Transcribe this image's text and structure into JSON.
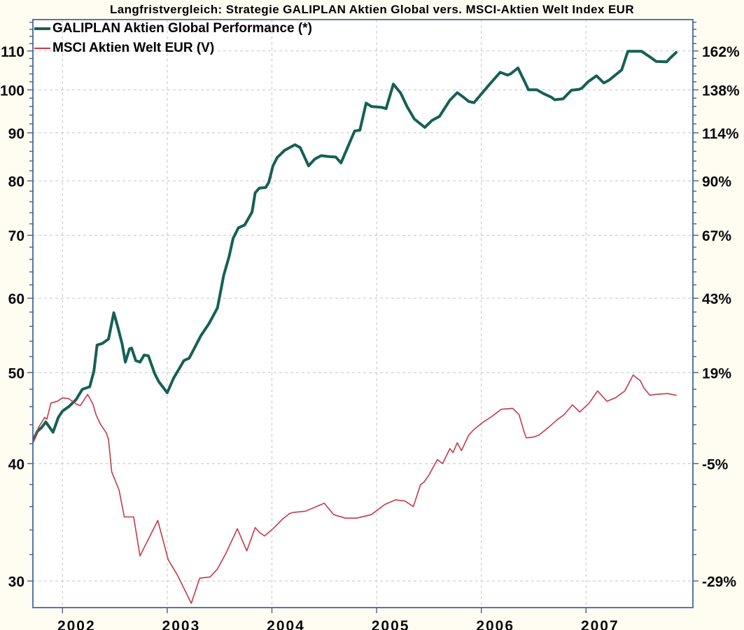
{
  "title": "Langfristvergleich: Strategie GALIPLAN Aktien Global vers. MSCI-Aktien Welt Index EUR",
  "colors": {
    "galiplan_line": "#166056",
    "msci_line": "#c43a4a",
    "frame": "#5578a8",
    "gridline": "#c6c6c6",
    "page_background": "#fffdf2",
    "plot_background": "#ffffff",
    "text": "#0a0a0a"
  },
  "chart_data": {
    "type": "line",
    "title": "Langfristvergleich: Strategie GALIPLAN Aktien Global vers. MSCI-Aktien Welt Index EUR",
    "legend_position": "top-left-inside",
    "grid": "dashed, at every labeled tick",
    "x_axis": {
      "ticks": [
        2002,
        2003,
        2004,
        2005,
        2006,
        2007
      ],
      "range_years": [
        2001.71,
        2008.02
      ]
    },
    "y_axis_left": {
      "scale": "log",
      "ticks": [
        110,
        100,
        90,
        80,
        70,
        60,
        50,
        40,
        30
      ],
      "minor_ticks": [
        118,
        116,
        114,
        112,
        108,
        106,
        104,
        102,
        98,
        96,
        94,
        92,
        88,
        86,
        84,
        82,
        78,
        76,
        74,
        72,
        68,
        66,
        64,
        62,
        58,
        56,
        54,
        52,
        48,
        46,
        44,
        42,
        38,
        36,
        34,
        32,
        28
      ],
      "range": [
        28.1,
        118.8
      ]
    },
    "y_axis_right": {
      "tick_labels": [
        "162%",
        "138%",
        "114%",
        "90%",
        "67%",
        "43%",
        "19%",
        "-5%",
        "-29%"
      ],
      "aligned_with_left_ticks": true
    },
    "series": [
      {
        "name": "GALIPLAN Aktien Global Performance (*)",
        "color": "#166056",
        "stroke_width": 4,
        "points": [
          [
            2001.71,
            42.1
          ],
          [
            2001.76,
            43.3
          ],
          [
            2001.8,
            43.7
          ],
          [
            2001.84,
            44.3
          ],
          [
            2001.91,
            43.2
          ],
          [
            2001.96,
            44.8
          ],
          [
            2002.0,
            45.5
          ],
          [
            2002.06,
            46.0
          ],
          [
            2002.13,
            46.8
          ],
          [
            2002.19,
            48.0
          ],
          [
            2002.26,
            48.3
          ],
          [
            2002.3,
            50.2
          ],
          [
            2002.33,
            53.5
          ],
          [
            2002.38,
            53.7
          ],
          [
            2002.44,
            54.3
          ],
          [
            2002.49,
            57.9
          ],
          [
            2002.53,
            55.8
          ],
          [
            2002.57,
            53.6
          ],
          [
            2002.6,
            51.3
          ],
          [
            2002.64,
            53.0
          ],
          [
            2002.66,
            53.1
          ],
          [
            2002.7,
            51.5
          ],
          [
            2002.74,
            51.3
          ],
          [
            2002.78,
            52.2
          ],
          [
            2002.82,
            52.1
          ],
          [
            2002.88,
            49.9
          ],
          [
            2002.92,
            48.9
          ],
          [
            2003.0,
            47.6
          ],
          [
            2003.06,
            49.3
          ],
          [
            2003.16,
            51.5
          ],
          [
            2003.21,
            51.8
          ],
          [
            2003.32,
            54.7
          ],
          [
            2003.4,
            56.4
          ],
          [
            2003.48,
            58.6
          ],
          [
            2003.54,
            63.5
          ],
          [
            2003.59,
            66.4
          ],
          [
            2003.63,
            69.5
          ],
          [
            2003.68,
            71.3
          ],
          [
            2003.74,
            71.8
          ],
          [
            2003.81,
            74.1
          ],
          [
            2003.84,
            77.7
          ],
          [
            2003.88,
            78.6
          ],
          [
            2003.94,
            78.7
          ],
          [
            2003.97,
            79.7
          ],
          [
            2004.01,
            83.0
          ],
          [
            2004.05,
            84.7
          ],
          [
            2004.12,
            86.2
          ],
          [
            2004.22,
            87.4
          ],
          [
            2004.27,
            86.8
          ],
          [
            2004.35,
            83.0
          ],
          [
            2004.41,
            84.4
          ],
          [
            2004.47,
            85.1
          ],
          [
            2004.55,
            84.9
          ],
          [
            2004.61,
            84.8
          ],
          [
            2004.66,
            83.6
          ],
          [
            2004.76,
            88.8
          ],
          [
            2004.79,
            90.4
          ],
          [
            2004.84,
            90.6
          ],
          [
            2004.9,
            96.8
          ],
          [
            2004.95,
            96.0
          ],
          [
            2005.05,
            95.8
          ],
          [
            2005.09,
            95.5
          ],
          [
            2005.16,
            101.4
          ],
          [
            2005.23,
            99.2
          ],
          [
            2005.29,
            96.0
          ],
          [
            2005.36,
            93.1
          ],
          [
            2005.46,
            91.2
          ],
          [
            2005.53,
            92.8
          ],
          [
            2005.6,
            93.7
          ],
          [
            2005.64,
            95.2
          ],
          [
            2005.7,
            97.5
          ],
          [
            2005.77,
            99.3
          ],
          [
            2005.83,
            98.2
          ],
          [
            2005.88,
            97.2
          ],
          [
            2005.93,
            96.9
          ],
          [
            2006.08,
            101.4
          ],
          [
            2006.18,
            104.4
          ],
          [
            2006.25,
            103.7
          ],
          [
            2006.28,
            104.0
          ],
          [
            2006.35,
            105.5
          ],
          [
            2006.42,
            101.7
          ],
          [
            2006.45,
            100.0
          ],
          [
            2006.53,
            100.0
          ],
          [
            2006.6,
            99.0
          ],
          [
            2006.67,
            98.2
          ],
          [
            2006.7,
            97.6
          ],
          [
            2006.78,
            97.8
          ],
          [
            2006.86,
            99.9
          ],
          [
            2006.93,
            100.1
          ],
          [
            2006.96,
            100.4
          ],
          [
            2007.02,
            102.0
          ],
          [
            2007.1,
            103.5
          ],
          [
            2007.17,
            101.7
          ],
          [
            2007.22,
            102.4
          ],
          [
            2007.28,
            103.7
          ],
          [
            2007.34,
            105.0
          ],
          [
            2007.4,
            109.9
          ],
          [
            2007.53,
            109.9
          ],
          [
            2007.6,
            108.6
          ],
          [
            2007.67,
            107.2
          ],
          [
            2007.77,
            107.1
          ],
          [
            2007.8,
            108.0
          ],
          [
            2007.86,
            109.6
          ]
        ]
      },
      {
        "name": "MSCI Aktien Welt EUR (V)",
        "color": "#c43a4a",
        "stroke_width": 1.6,
        "points": [
          [
            2001.71,
            41.9
          ],
          [
            2001.77,
            43.7
          ],
          [
            2001.83,
            44.8
          ],
          [
            2001.85,
            44.6
          ],
          [
            2001.89,
            46.4
          ],
          [
            2001.95,
            46.6
          ],
          [
            2002.0,
            47.0
          ],
          [
            2002.06,
            46.9
          ],
          [
            2002.13,
            46.3
          ],
          [
            2002.17,
            46.1
          ],
          [
            2002.24,
            47.4
          ],
          [
            2002.29,
            46.3
          ],
          [
            2002.32,
            45.1
          ],
          [
            2002.36,
            44.1
          ],
          [
            2002.39,
            43.6
          ],
          [
            2002.42,
            43.1
          ],
          [
            2002.44,
            42.4
          ],
          [
            2002.47,
            39.2
          ],
          [
            2002.54,
            37.5
          ],
          [
            2002.59,
            35.1
          ],
          [
            2002.68,
            35.1
          ],
          [
            2002.74,
            31.9
          ],
          [
            2002.91,
            34.8
          ],
          [
            2003.01,
            31.6
          ],
          [
            2003.1,
            30.4
          ],
          [
            2003.23,
            28.4
          ],
          [
            2003.31,
            30.2
          ],
          [
            2003.41,
            30.3
          ],
          [
            2003.48,
            30.9
          ],
          [
            2003.56,
            32.1
          ],
          [
            2003.67,
            34.1
          ],
          [
            2003.76,
            32.3
          ],
          [
            2003.84,
            34.2
          ],
          [
            2003.88,
            33.8
          ],
          [
            2003.93,
            33.5
          ],
          [
            2003.97,
            33.8
          ],
          [
            2004.01,
            34.1
          ],
          [
            2004.1,
            34.9
          ],
          [
            2004.17,
            35.4
          ],
          [
            2004.21,
            35.5
          ],
          [
            2004.32,
            35.6
          ],
          [
            2004.5,
            36.3
          ],
          [
            2004.59,
            35.3
          ],
          [
            2004.7,
            35.0
          ],
          [
            2004.81,
            35.0
          ],
          [
            2004.95,
            35.3
          ],
          [
            2005.08,
            36.2
          ],
          [
            2005.18,
            36.6
          ],
          [
            2005.27,
            36.5
          ],
          [
            2005.35,
            36.0
          ],
          [
            2005.42,
            38.0
          ],
          [
            2005.45,
            38.2
          ],
          [
            2005.5,
            38.9
          ],
          [
            2005.58,
            40.4
          ],
          [
            2005.63,
            40.0
          ],
          [
            2005.7,
            41.5
          ],
          [
            2005.73,
            41.1
          ],
          [
            2005.77,
            42.1
          ],
          [
            2005.81,
            41.3
          ],
          [
            2005.88,
            42.9
          ],
          [
            2005.93,
            43.5
          ],
          [
            2006.02,
            44.3
          ],
          [
            2006.1,
            44.9
          ],
          [
            2006.19,
            45.7
          ],
          [
            2006.3,
            45.8
          ],
          [
            2006.36,
            45.1
          ],
          [
            2006.41,
            43.2
          ],
          [
            2006.43,
            42.6
          ],
          [
            2006.5,
            42.7
          ],
          [
            2006.55,
            42.9
          ],
          [
            2006.64,
            43.7
          ],
          [
            2006.72,
            44.5
          ],
          [
            2006.79,
            45.1
          ],
          [
            2006.87,
            46.2
          ],
          [
            2006.94,
            45.4
          ],
          [
            2007.03,
            46.4
          ],
          [
            2007.11,
            47.8
          ],
          [
            2007.2,
            46.6
          ],
          [
            2007.28,
            47.0
          ],
          [
            2007.37,
            47.8
          ],
          [
            2007.45,
            49.7
          ],
          [
            2007.52,
            49.0
          ],
          [
            2007.55,
            48.2
          ],
          [
            2007.61,
            47.3
          ],
          [
            2007.66,
            47.4
          ],
          [
            2007.78,
            47.5
          ],
          [
            2007.86,
            47.3
          ]
        ]
      }
    ]
  }
}
